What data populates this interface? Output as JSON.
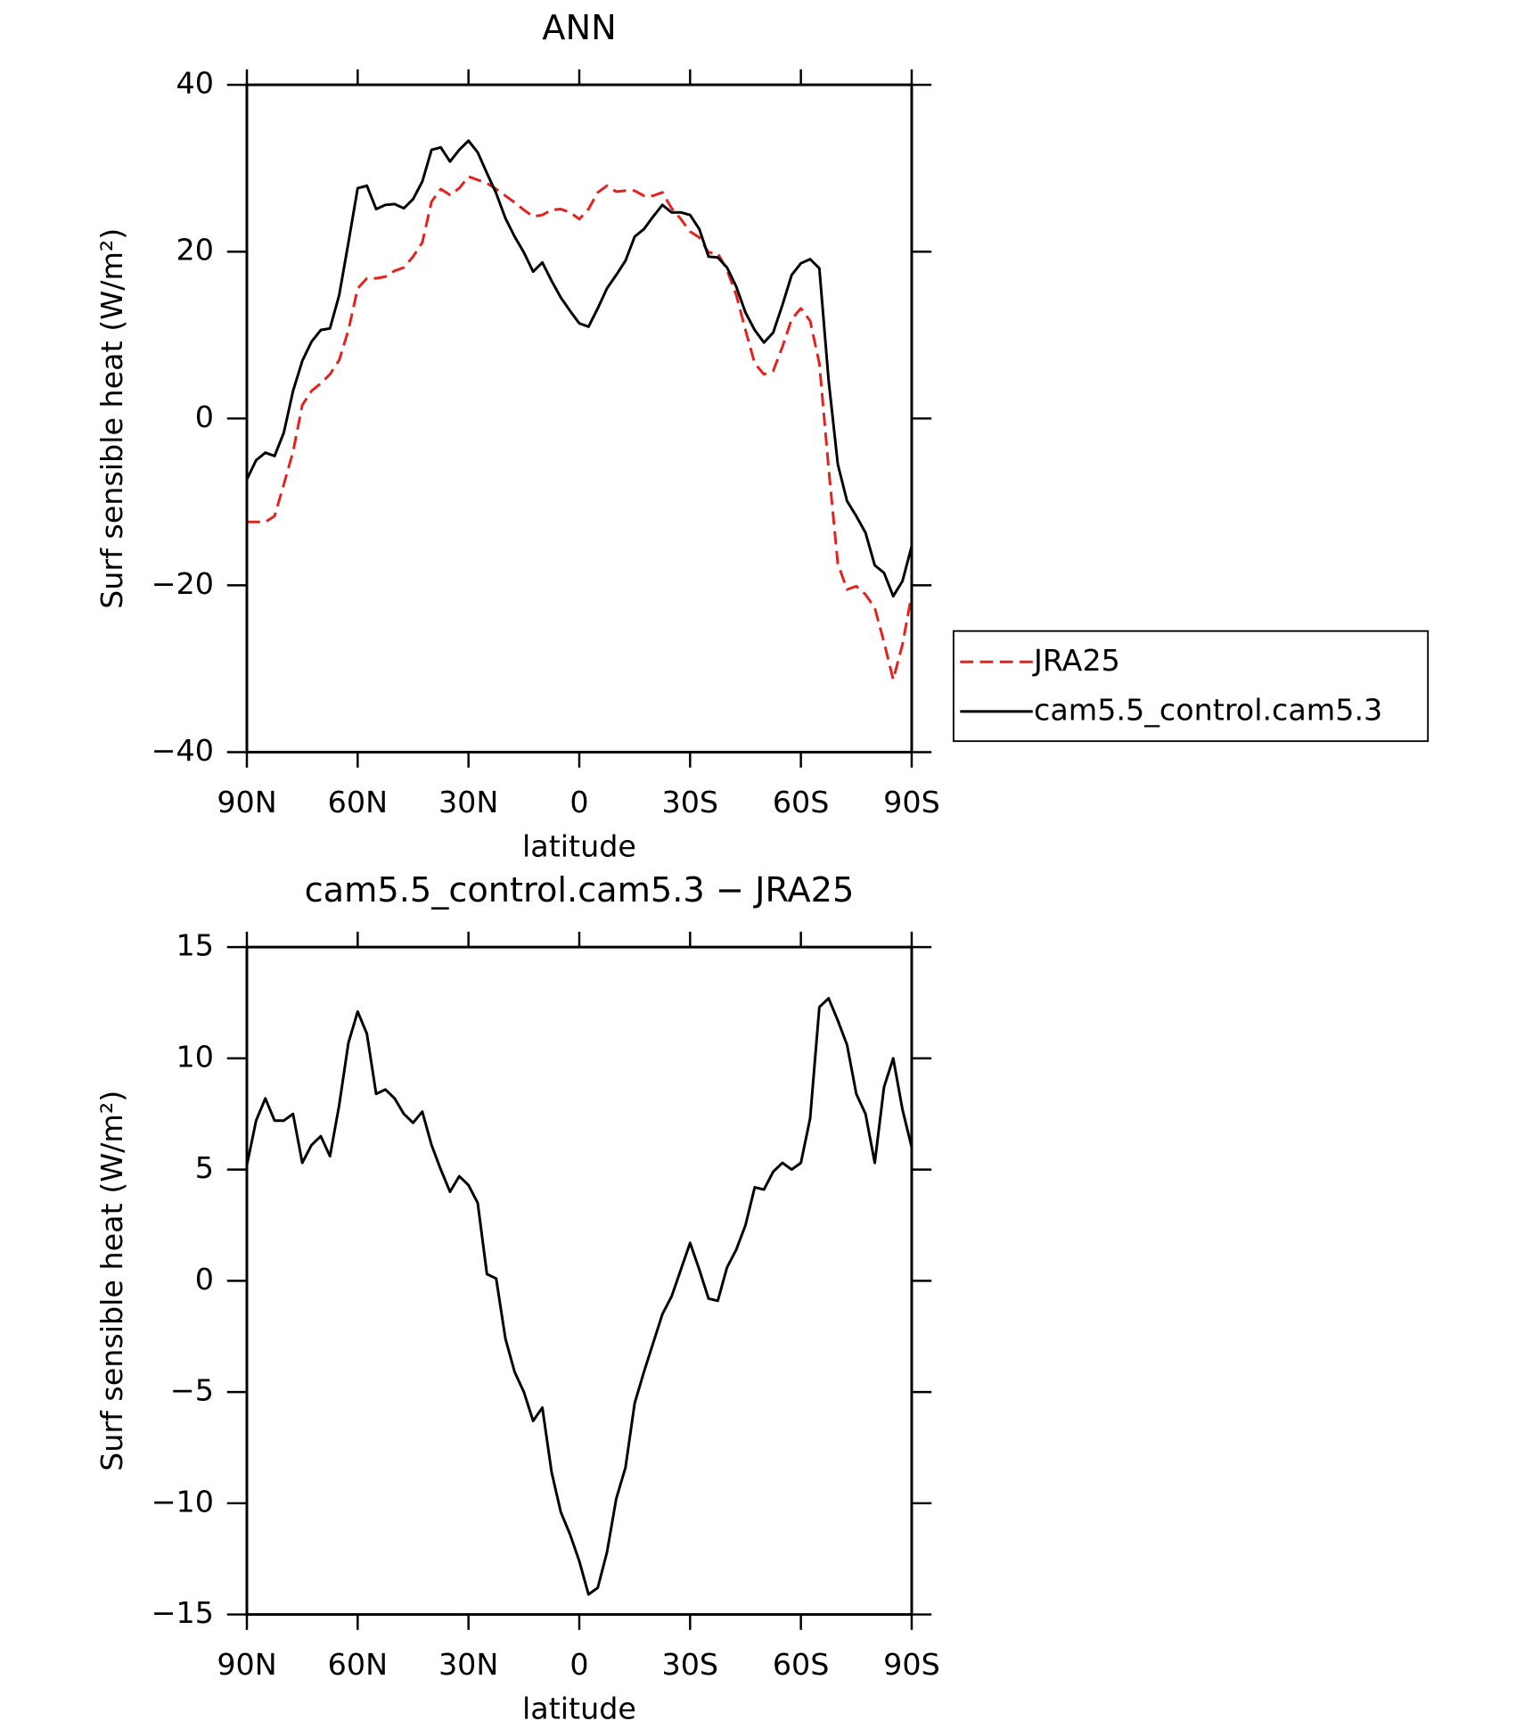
{
  "chart_data": [
    {
      "type": "line",
      "title": "ANN",
      "xlabel": "latitude",
      "ylabel": "Surf sensible heat (W/m²)",
      "x": [
        90,
        87.5,
        85,
        82.5,
        80,
        77.5,
        75,
        72.5,
        70,
        67.5,
        65,
        62.5,
        60,
        57.5,
        55,
        52.5,
        50,
        47.5,
        45,
        42.5,
        40,
        37.5,
        35,
        32.5,
        30,
        27.5,
        25,
        22.5,
        20,
        17.5,
        15,
        12.5,
        10,
        7.5,
        5,
        2.5,
        0,
        -2.5,
        -5,
        -7.5,
        -10,
        -12.5,
        -15,
        -17.5,
        -20,
        -22.5,
        -25,
        -27.5,
        -30,
        -32.5,
        -35,
        -37.5,
        -40,
        -42.5,
        -45,
        -47.5,
        -50,
        -52.5,
        -55,
        -57.5,
        -60,
        -62.5,
        -65,
        -67.5,
        -70,
        -72.5,
        -75,
        -77.5,
        -80,
        -82.5,
        -85,
        -87.5,
        -90
      ],
      "series": [
        {
          "name": "JRA25",
          "color": "#e8201c",
          "dashed": true,
          "values": [
            -12.4,
            -12.4,
            -12.4,
            -11.7,
            -7.9,
            -4,
            1.6,
            3.3,
            4.2,
            5.3,
            7,
            10.6,
            15.6,
            16.8,
            16.8,
            17,
            17.7,
            18.1,
            19.4,
            21.1,
            26,
            27.5,
            26.8,
            27.6,
            29,
            28.6,
            28.2,
            27.5,
            26.7,
            25.9,
            25,
            24.2,
            24.4,
            25,
            25.1,
            24.7,
            23.9,
            25.1,
            27.1,
            27.9,
            27.2,
            27.3,
            27.3,
            26.7,
            26.7,
            27.1,
            25.2,
            23.9,
            22.4,
            21.7,
            19.9,
            19.8,
            17.8,
            14.8,
            10.6,
            6.6,
            5.3,
            5.7,
            8.6,
            11.9,
            13.2,
            11.7,
            6.6,
            -5.9,
            -17.4,
            -20.5,
            -20.1,
            -21.1,
            -22.7,
            -26.8,
            -31.3,
            -27.1,
            -21.1
          ]
        },
        {
          "name": "cam5.5_control.cam5.3",
          "color": "#000000",
          "dashed": false,
          "values": [
            -7.3,
            -5,
            -4.1,
            -4.5,
            -1.7,
            3.3,
            6.9,
            9.2,
            10.6,
            10.8,
            14.8,
            21.1,
            27.6,
            27.9,
            25.1,
            25.6,
            25.7,
            25.2,
            26.3,
            28.4,
            32.2,
            32.5,
            30.8,
            32.2,
            33.3,
            31.9,
            29.4,
            27,
            24,
            21.8,
            19.9,
            17.6,
            18.7,
            16.5,
            14.5,
            12.9,
            11.4,
            11,
            13.2,
            15.6,
            17.2,
            18.9,
            21.8,
            22.7,
            24.2,
            25.6,
            24.7,
            24.7,
            24.4,
            22.7,
            19.4,
            19.3,
            18.1,
            15.8,
            12.7,
            10.6,
            9.1,
            10.3,
            13.6,
            17.2,
            18.6,
            19.1,
            18,
            4.6,
            -5.5,
            -9.9,
            -11.7,
            -13.7,
            -17.6,
            -18.5,
            -21.3,
            -19.5,
            -15.3
          ]
        }
      ],
      "xlim": [
        90,
        -90
      ],
      "xticks": [
        {
          "value": 90,
          "label": "90N"
        },
        {
          "value": 60,
          "label": "60N"
        },
        {
          "value": 30,
          "label": "30N"
        },
        0,
        {
          "value": -30,
          "label": "30S"
        },
        {
          "value": -60,
          "label": "60S"
        },
        {
          "value": -90,
          "label": "90S"
        }
      ],
      "ylim": [
        -40,
        40
      ],
      "yticks": [
        {
          "value": -40,
          "label": "−40"
        },
        {
          "value": -20,
          "label": "−20"
        },
        0,
        20,
        40
      ],
      "legend": "outside-right"
    },
    {
      "type": "line",
      "title": "cam5.5_control.cam5.3 − JRA25",
      "xlabel": "latitude",
      "ylabel": "Surf sensible heat (W/m²)",
      "x": [
        90,
        87.5,
        85,
        82.5,
        80,
        77.5,
        75,
        72.5,
        70,
        67.5,
        65,
        62.5,
        60,
        57.5,
        55,
        52.5,
        50,
        47.5,
        45,
        42.5,
        40,
        37.5,
        35,
        32.5,
        30,
        27.5,
        25,
        22.5,
        20,
        17.5,
        15,
        12.5,
        10,
        7.5,
        5,
        2.5,
        0,
        -2.5,
        -5,
        -7.5,
        -10,
        -12.5,
        -15,
        -17.5,
        -20,
        -22.5,
        -25,
        -27.5,
        -30,
        -32.5,
        -35,
        -37.5,
        -40,
        -42.5,
        -45,
        -47.5,
        -50,
        -52.5,
        -55,
        -57.5,
        -60,
        -62.5,
        -65,
        -67.5,
        -70,
        -72.5,
        -75,
        -77.5,
        -80,
        -82.5,
        -85,
        -87.5,
        -90
      ],
      "color": "#000000",
      "values": [
        5.2,
        7.2,
        8.2,
        7.2,
        7.2,
        7.5,
        5.3,
        6.1,
        6.5,
        5.6,
        7.9,
        10.7,
        12.1,
        11.1,
        8.4,
        8.6,
        8.2,
        7.5,
        7.1,
        7.6,
        6.1,
        5,
        4,
        4.7,
        4.3,
        3.5,
        0.3,
        0.1,
        -2.6,
        -4.1,
        -5,
        -6.3,
        -5.7,
        -8.6,
        -10.4,
        -11.4,
        -12.6,
        -14.1,
        -13.8,
        -12.2,
        -9.8,
        -8.4,
        -5.5,
        -4.1,
        -2.8,
        -1.5,
        -0.7,
        0.5,
        1.7,
        0.5,
        -0.8,
        -0.9,
        0.6,
        1.4,
        2.5,
        4.2,
        4.1,
        4.9,
        5.3,
        5,
        5.3,
        7.3,
        12.3,
        12.7,
        11.7,
        10.6,
        8.4,
        7.5,
        5.3,
        8.7,
        10,
        7.7,
        6
      ],
      "xlim": [
        90,
        -90
      ],
      "xticks": [
        {
          "value": 90,
          "label": "90N"
        },
        {
          "value": 60,
          "label": "60N"
        },
        {
          "value": 30,
          "label": "30N"
        },
        0,
        {
          "value": -30,
          "label": "30S"
        },
        {
          "value": -60,
          "label": "60S"
        },
        {
          "value": -90,
          "label": "90S"
        }
      ],
      "ylim": [
        -15,
        15
      ],
      "yticks": [
        {
          "value": -15,
          "label": "−15"
        },
        {
          "value": -10,
          "label": "−10"
        },
        {
          "value": -5,
          "label": "−5"
        },
        0,
        5,
        10,
        15
      ]
    }
  ]
}
